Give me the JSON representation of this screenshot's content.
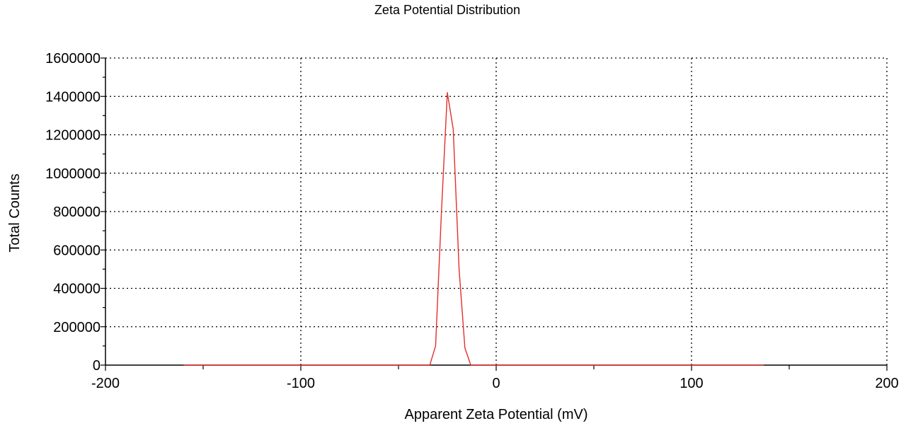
{
  "chart_data": {
    "type": "line",
    "title": "Zeta Potential Distribution",
    "xlabel": "Apparent Zeta Potential (mV)",
    "ylabel": "Total Counts",
    "xlim": [
      -200,
      200
    ],
    "ylim": [
      0,
      1600000
    ],
    "x_ticks": [
      -200,
      -100,
      0,
      100,
      200
    ],
    "x_tick_labels": [
      "-200",
      "-100",
      "0",
      "100",
      "200"
    ],
    "y_ticks": [
      0,
      200000,
      400000,
      600000,
      800000,
      1000000,
      1200000,
      1400000,
      1600000
    ],
    "y_tick_labels": [
      "0",
      "200000",
      "400000",
      "600000",
      "800000",
      "1000000",
      "1200000",
      "1400000",
      "1600000"
    ],
    "grid": true,
    "series": [
      {
        "color": "#e0302a",
        "x": [
          -160,
          -34,
          -31,
          -28,
          -25,
          -22,
          -19,
          -16,
          -13,
          137
        ],
        "y": [
          0,
          0,
          100000,
          800000,
          1420000,
          1230000,
          500000,
          90000,
          0,
          0
        ]
      }
    ]
  }
}
